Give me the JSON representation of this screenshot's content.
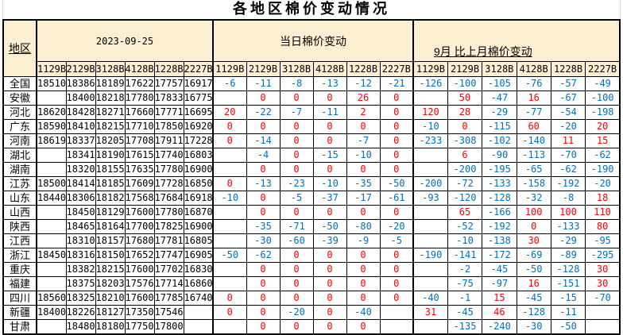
{
  "title": "各地区棉价变动情况",
  "table": {
    "region_header": "地区",
    "sections": [
      {
        "label": "2023-09-25"
      },
      {
        "label": "当日棉价变动"
      },
      {
        "label": "9月 比上月棉价变动"
      }
    ],
    "grades": [
      "1129B",
      "2129B",
      "3128B",
      "4128B",
      "1228B",
      "2227B"
    ],
    "rows": [
      {
        "region": "全国",
        "prices": [
          18510,
          18386,
          18189,
          17622,
          17757,
          16917
        ],
        "daily_change": [
          -6,
          -11,
          -8,
          -13,
          -12,
          -21
        ],
        "monthly_change": [
          -126,
          -100,
          -105,
          -76,
          -57,
          -49
        ]
      },
      {
        "region": "安徽",
        "prices": [
          null,
          18400,
          18218,
          17780,
          17833,
          16775
        ],
        "daily_change": [
          null,
          0,
          0,
          0,
          26,
          0
        ],
        "monthly_change": [
          null,
          50,
          -47,
          16,
          -67,
          -100
        ]
      },
      {
        "region": "河北",
        "prices": [
          18620,
          18428,
          18271,
          17660,
          17771,
          16695
        ],
        "daily_change": [
          20,
          -22,
          -7,
          -11,
          2,
          0
        ],
        "monthly_change": [
          120,
          28,
          -29,
          -77,
          -54,
          -198
        ]
      },
      {
        "region": "广东",
        "prices": [
          18590,
          18410,
          18215,
          17710,
          17850,
          16920
        ],
        "daily_change": [
          0,
          0,
          0,
          0,
          0,
          0
        ],
        "monthly_change": [
          -10,
          0,
          -115,
          60,
          -20,
          20
        ]
      },
      {
        "region": "河南",
        "prices": [
          18619,
          18337,
          18205,
          17708,
          17911,
          17228
        ],
        "daily_change": [
          0,
          -14,
          0,
          0,
          -7,
          0
        ],
        "monthly_change": [
          -233,
          -308,
          -102,
          -140,
          11,
          15
        ]
      },
      {
        "region": "湖北",
        "prices": [
          null,
          18341,
          18190,
          17615,
          17740,
          16803
        ],
        "daily_change": [
          null,
          -4,
          0,
          -15,
          -10,
          0
        ],
        "monthly_change": [
          null,
          6,
          -90,
          -113,
          -70,
          -62
        ]
      },
      {
        "region": "湖南",
        "prices": [
          null,
          18320,
          18155,
          17635,
          17780,
          16900
        ],
        "daily_change": [
          null,
          0,
          0,
          0,
          0,
          0
        ],
        "monthly_change": [
          null,
          -200,
          -195,
          -65,
          -62,
          -190
        ]
      },
      {
        "region": "江苏",
        "prices": [
          18500,
          18414,
          18185,
          17609,
          17728,
          16850
        ],
        "daily_change": [
          0,
          -13,
          -23,
          -10,
          -35,
          -50
        ],
        "monthly_change": [
          -200,
          -72,
          -133,
          -158,
          -192,
          -20
        ]
      },
      {
        "region": "山东",
        "prices": [
          18440,
          18306,
          18182,
          17568,
          17684,
          16918
        ],
        "daily_change": [
          -10,
          0,
          -5,
          -37,
          -17,
          -61
        ],
        "monthly_change": [
          -93,
          -120,
          -128,
          -32,
          -8,
          18
        ]
      },
      {
        "region": "山西",
        "prices": [
          null,
          18450,
          18129,
          17600,
          17780,
          16870
        ],
        "daily_change": [
          null,
          0,
          0,
          0,
          0,
          0
        ],
        "monthly_change": [
          null,
          65,
          -166,
          100,
          100,
          110
        ]
      },
      {
        "region": "陕西",
        "prices": [
          null,
          18465,
          18164,
          17700,
          17825,
          16900
        ],
        "daily_change": [
          null,
          -35,
          -71,
          -50,
          -80,
          -20
        ],
        "monthly_change": [
          null,
          -52,
          -192,
          0,
          -133,
          80
        ]
      },
      {
        "region": "江西",
        "prices": [
          null,
          18310,
          18157,
          17680,
          17781,
          16805
        ],
        "daily_change": [
          null,
          -30,
          -60,
          -39,
          -9,
          -5
        ],
        "monthly_change": [
          null,
          -10,
          -138,
          30,
          -29,
          -95
        ]
      },
      {
        "region": "浙江",
        "prices": [
          18450,
          18316,
          18150,
          17652,
          17747,
          16905
        ],
        "daily_change": [
          -50,
          -62,
          0,
          0,
          0,
          0
        ],
        "monthly_change": [
          -190,
          -141,
          -172,
          -69,
          -89,
          -295
        ]
      },
      {
        "region": "重庆",
        "prices": [
          null,
          18382,
          18215,
          17600,
          17702,
          16830
        ],
        "daily_change": [
          null,
          0,
          0,
          0,
          0,
          0
        ],
        "monthly_change": [
          null,
          -2,
          -45,
          -50,
          -128,
          30
        ]
      },
      {
        "region": "福建",
        "prices": [
          null,
          18375,
          18203,
          17576,
          17714,
          16860
        ],
        "daily_change": [
          null,
          0,
          0,
          0,
          0,
          0
        ],
        "monthly_change": [
          null,
          -75,
          -97,
          16,
          -151,
          30
        ]
      },
      {
        "region": "四川",
        "prices": [
          18560,
          18325,
          18210,
          17600,
          17785,
          16740
        ],
        "daily_change": [
          0,
          0,
          0,
          0,
          0,
          0
        ],
        "monthly_change": [
          -40,
          -1,
          15,
          -45,
          -15,
          -70
        ]
      },
      {
        "region": "新疆",
        "prices": [
          18400,
          18226,
          18127,
          17350,
          17546,
          null
        ],
        "daily_change": [
          0,
          0,
          -20,
          0,
          -40,
          null
        ],
        "monthly_change": [
          31,
          -45,
          46,
          -128,
          -11,
          null
        ]
      },
      {
        "region": "甘肃",
        "prices": [
          null,
          18480,
          18180,
          17750,
          17800,
          null
        ],
        "daily_change": [
          null,
          0,
          0,
          0,
          0,
          null
        ],
        "monthly_change": [
          null,
          -135,
          -240,
          -30,
          -50,
          null
        ]
      }
    ]
  },
  "colors": {
    "header_bg": "#FCEFD2",
    "negative": "#0070C0",
    "positive_or_zero": "#FF0000",
    "border": "#000000"
  }
}
